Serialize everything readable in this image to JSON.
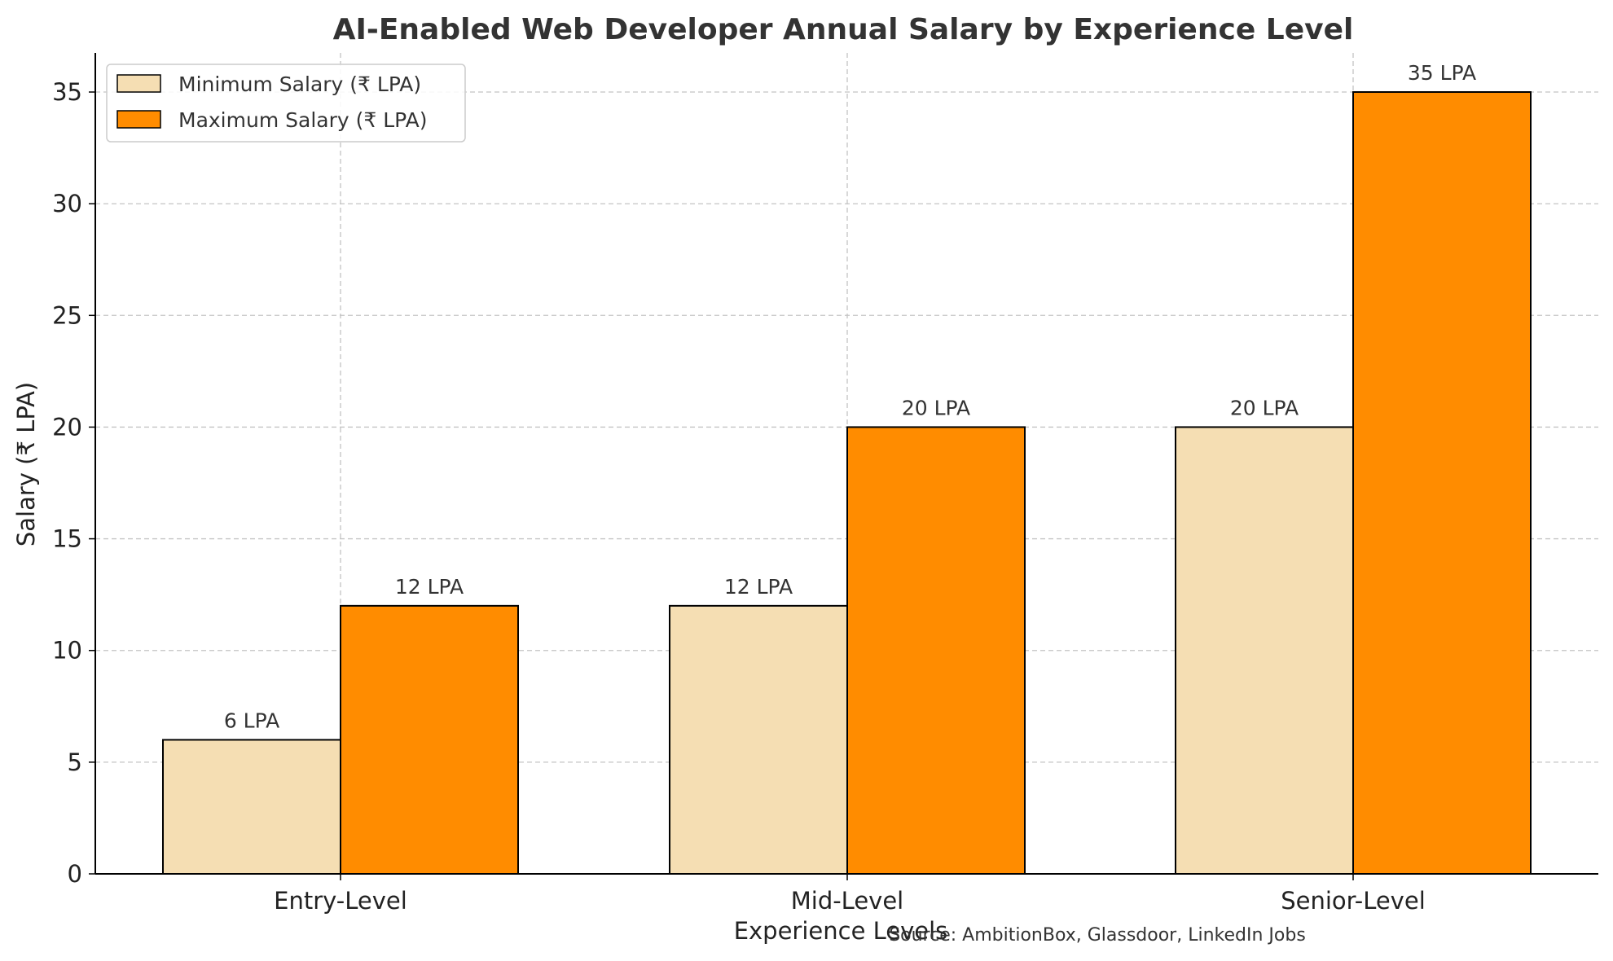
{
  "chart_data": {
    "type": "bar",
    "title": "AI-Enabled Web Developer Annual Salary by Experience Level",
    "xlabel": "Experience Levels",
    "ylabel": "Salary (₹ LPA)",
    "categories": [
      "Entry-Level",
      "Mid-Level",
      "Senior-Level"
    ],
    "series": [
      {
        "name": "Minimum Salary (₹ LPA)",
        "values": [
          6,
          12,
          20
        ],
        "labels": [
          "6 LPA",
          "12 LPA",
          "20 LPA"
        ],
        "color": "#F5DEB3"
      },
      {
        "name": "Maximum Salary (₹ LPA)",
        "values": [
          12,
          20,
          35
        ],
        "labels": [
          "12 LPA",
          "20 LPA",
          "35 LPA"
        ],
        "color": "#FF8C00"
      }
    ],
    "ylim": [
      0,
      36.75
    ],
    "yticks": [
      0,
      5,
      10,
      15,
      20,
      25,
      30,
      35
    ],
    "grid": true,
    "legend_position": "top-left",
    "source": "Source: AmbitionBox, Glassdoor, LinkedIn Jobs"
  }
}
